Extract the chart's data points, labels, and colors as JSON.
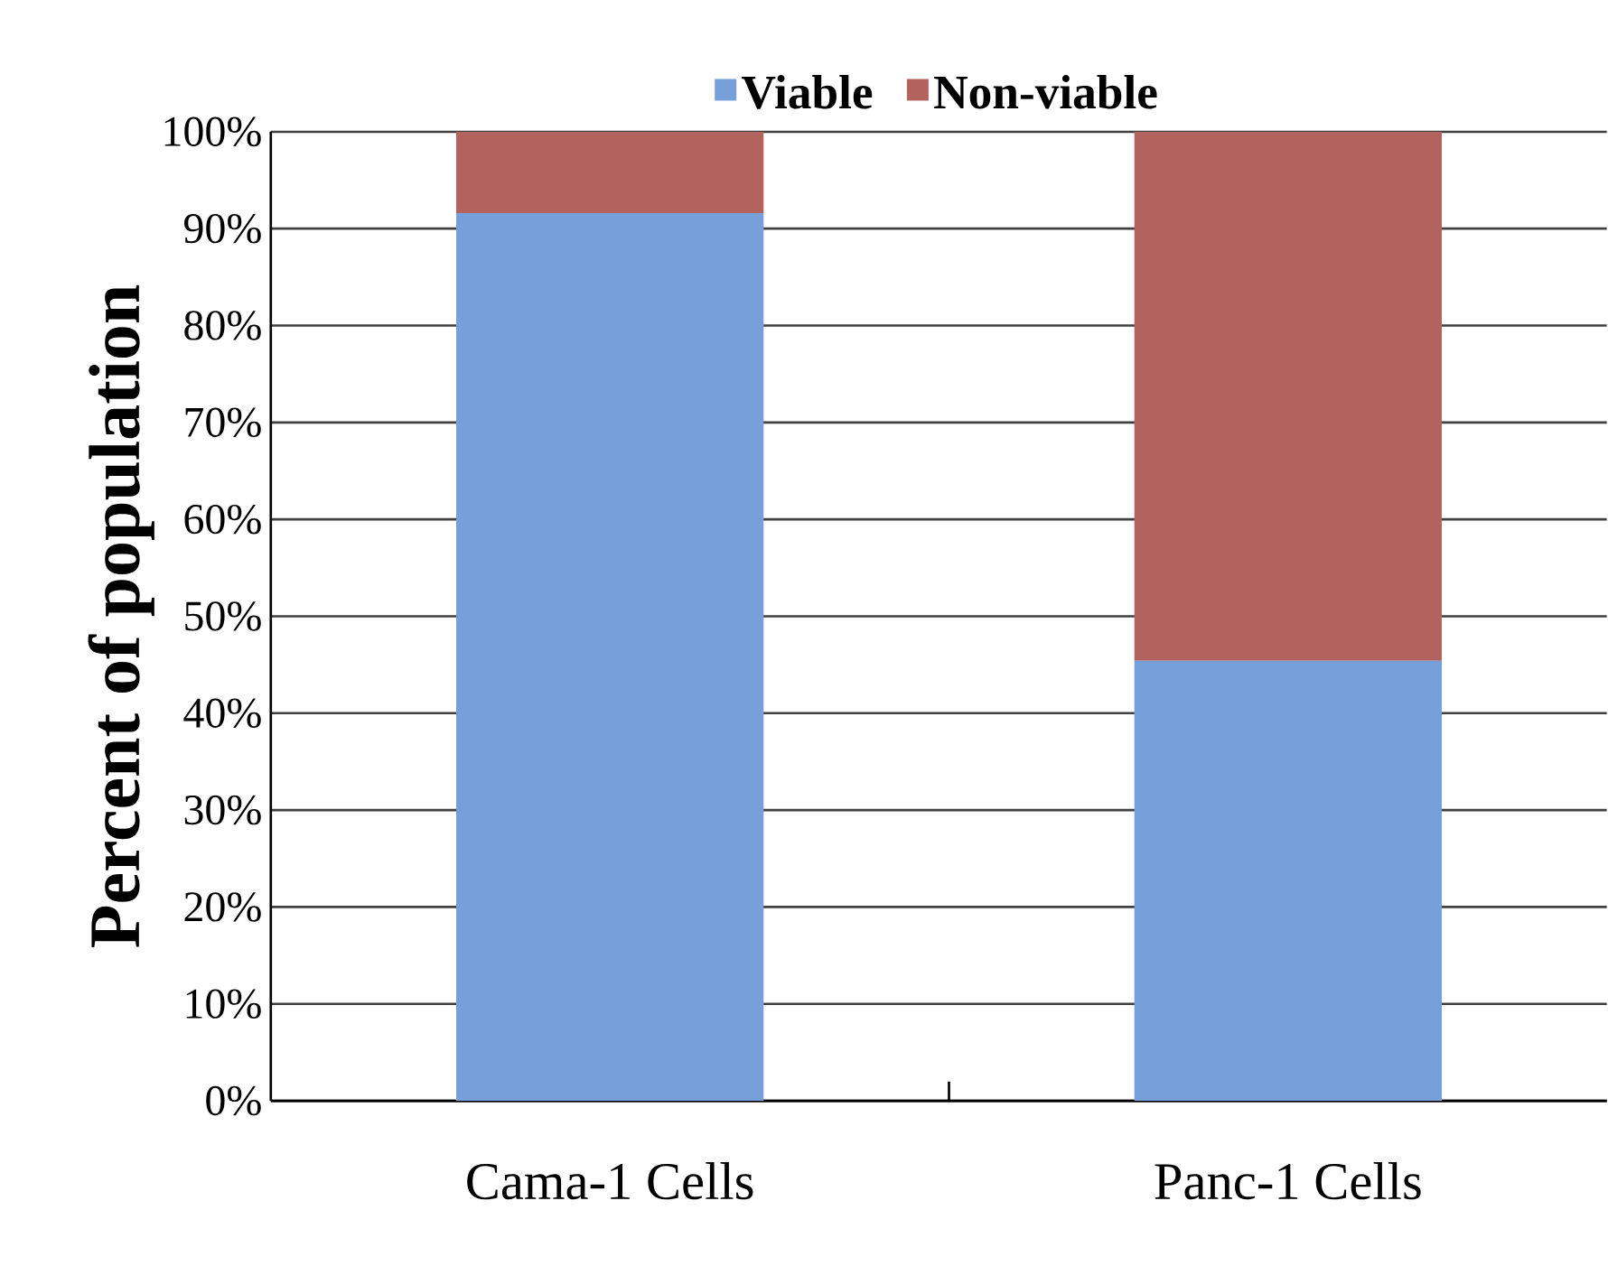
{
  "chart_data": {
    "type": "bar",
    "stacked": true,
    "ylabel": "Percent of population",
    "categories": [
      "Cama-1 Cells",
      "Panc-1 Cells"
    ],
    "series": [
      {
        "name": "Viable",
        "color": "#779fd9",
        "values": [
          91.6,
          45.4
        ]
      },
      {
        "name": "Non-viable",
        "color": "#b3635e",
        "values": [
          8.4,
          54.6
        ]
      }
    ],
    "ylim": [
      0,
      100
    ],
    "yticks": [
      {
        "value": 0,
        "label": "0%"
      },
      {
        "value": 10,
        "label": "10%"
      },
      {
        "value": 20,
        "label": "20%"
      },
      {
        "value": 30,
        "label": "30%"
      },
      {
        "value": 40,
        "label": "40%"
      },
      {
        "value": 50,
        "label": "50%"
      },
      {
        "value": 60,
        "label": "60%"
      },
      {
        "value": 70,
        "label": "70%"
      },
      {
        "value": 80,
        "label": "80%"
      },
      {
        "value": 90,
        "label": "90%"
      },
      {
        "value": 100,
        "label": "100%"
      }
    ],
    "grid": "y",
    "legend": "top"
  }
}
